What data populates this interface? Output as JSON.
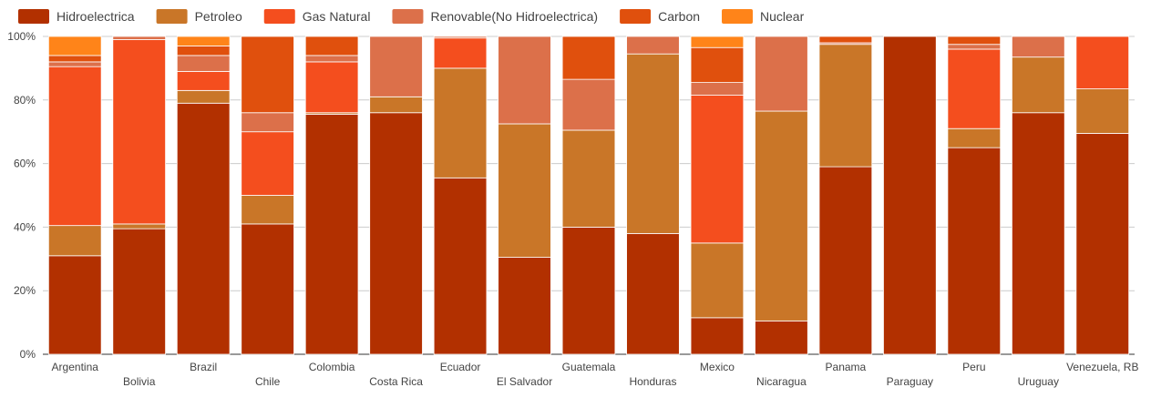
{
  "chart_data": {
    "type": "bar",
    "stacked": true,
    "normalized": true,
    "title": "",
    "xlabel": "",
    "ylabel": "",
    "ylim": [
      0,
      100
    ],
    "y_ticks": [
      "0%",
      "20%",
      "40%",
      "60%",
      "80%",
      "100%"
    ],
    "grid": true,
    "legend_position": "top-left",
    "categories": [
      "Argentina",
      "Bolivia",
      "Brazil",
      "Chile",
      "Colombia",
      "Costa Rica",
      "Ecuador",
      "El Salvador",
      "Guatemala",
      "Honduras",
      "Mexico",
      "Nicaragua",
      "Panama",
      "Paraguay",
      "Peru",
      "Uruguay",
      "Venezuela, RB"
    ],
    "series": [
      {
        "name": "Hidroelectrica",
        "color": "#b23000",
        "values": [
          31,
          39.5,
          79,
          41,
          75.5,
          76,
          55.5,
          30.5,
          40,
          38,
          11.5,
          10.5,
          59,
          100,
          65,
          76,
          69.5
        ]
      },
      {
        "name": "Petroleo",
        "color": "#c97628",
        "values": [
          9.5,
          1.5,
          4,
          9,
          0.5,
          5,
          34.5,
          42,
          30.5,
          56.5,
          23.5,
          66,
          38.5,
          0,
          6,
          17.5,
          14
        ]
      },
      {
        "name": "Gas Natural",
        "color": "#f44e1e",
        "values": [
          50,
          58,
          6,
          20,
          16,
          0,
          9.5,
          0,
          0,
          0,
          46.5,
          0,
          0,
          0,
          25,
          0,
          16.5
        ]
      },
      {
        "name": "Renovable(No Hidroelectrica)",
        "color": "#dc704a",
        "values": [
          1.5,
          1,
          5,
          6,
          2,
          19,
          0.5,
          27.5,
          16,
          5.5,
          4,
          23.5,
          0.5,
          0,
          1.5,
          6.5,
          0
        ]
      },
      {
        "name": "Carbon",
        "color": "#e0500d",
        "values": [
          2,
          0,
          3,
          24,
          6,
          0,
          0,
          0,
          13.5,
          0,
          11,
          0,
          2,
          0,
          2.5,
          0,
          0
        ]
      },
      {
        "name": "Nuclear",
        "color": "#ff8419",
        "values": [
          6,
          0,
          3,
          0,
          0,
          0,
          0,
          0,
          0,
          0,
          3.5,
          0,
          0,
          0,
          0,
          0,
          0
        ]
      }
    ]
  }
}
